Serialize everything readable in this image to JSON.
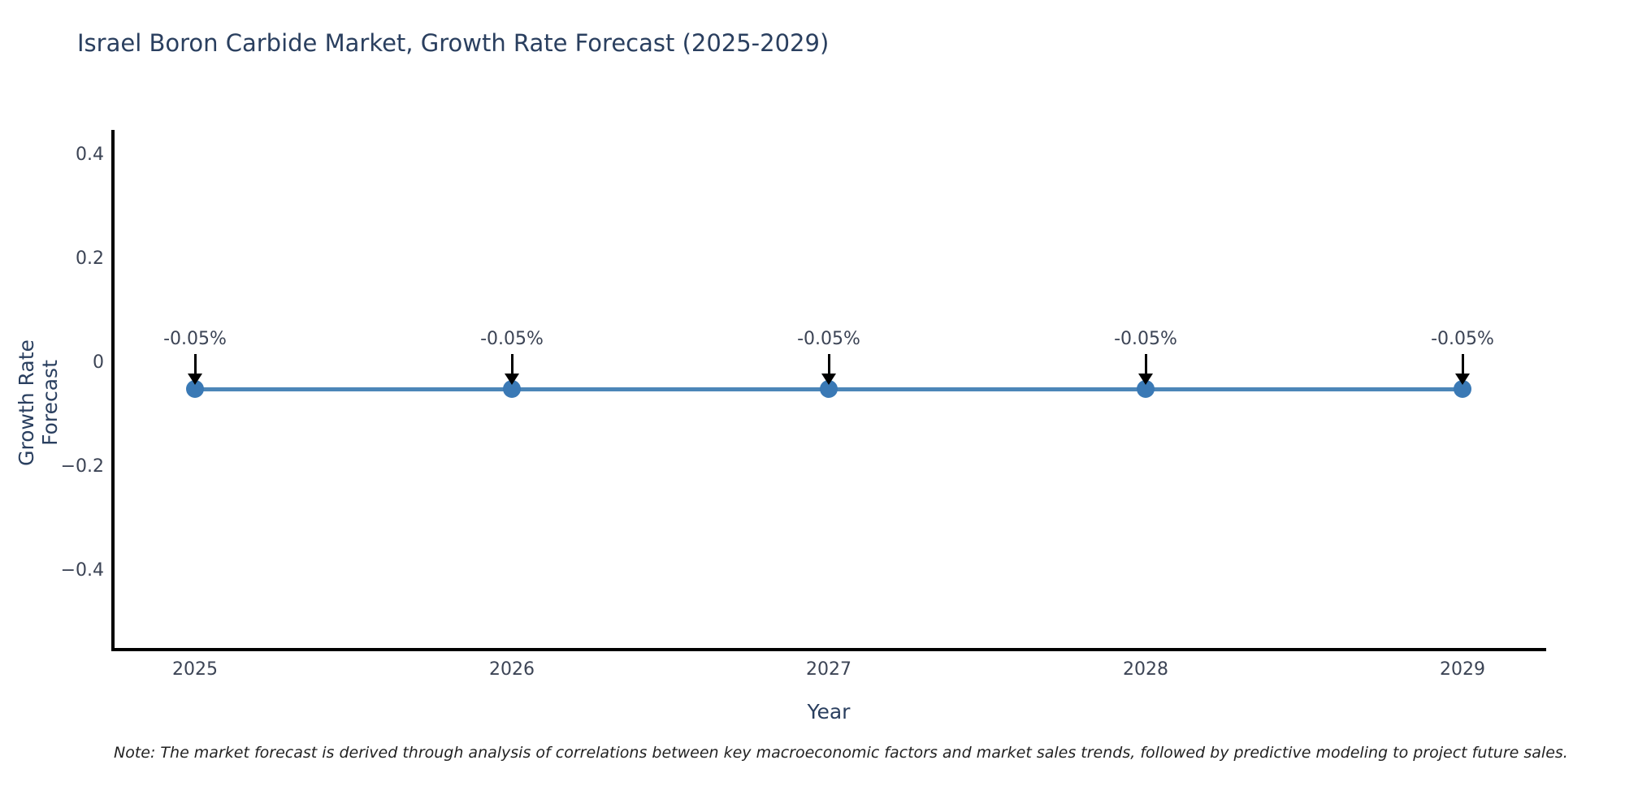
{
  "title": "Israel Boron Carbide Market, Growth Rate Forecast (2025-2029)",
  "note": "Note: The market forecast is derived through analysis of correlations between key macroeconomic factors and market sales trends, followed by predictive modeling to project future sales.",
  "colors": {
    "title": "#2a3f5f",
    "axis_line": "#000000",
    "tick_label": "#3c4455",
    "series_line": "#4c86b8",
    "marker": "#3a79b5",
    "arrow": "#000000",
    "annotation_text": "#3c4455",
    "note_text": "#222222"
  },
  "chart_data": {
    "type": "line",
    "title": "Israel Boron Carbide Market, Growth Rate Forecast (2025-2029)",
    "xlabel": "Year",
    "ylabel": "Growth Rate Forecast",
    "x": [
      2025,
      2026,
      2027,
      2028,
      2029
    ],
    "series": [
      {
        "name": "Growth Rate Forecast",
        "values": [
          -0.05,
          -0.05,
          -0.05,
          -0.05,
          -0.05
        ]
      }
    ],
    "point_annotations": [
      "-0.05%",
      "-0.05%",
      "-0.05%",
      "-0.05%",
      "-0.05%"
    ],
    "x_tick_labels": [
      "2025",
      "2026",
      "2027",
      "2028",
      "2029"
    ],
    "y_ticks": [
      0.4,
      0.2,
      0,
      -0.2,
      -0.4
    ],
    "y_tick_labels": [
      "0.4",
      "0.2",
      "0",
      "−0.2",
      "−0.4"
    ],
    "ylim": [
      -0.55,
      0.45
    ],
    "grid": false,
    "legend": false,
    "annotation_arrows": "black arrows pointing down to each marker"
  }
}
